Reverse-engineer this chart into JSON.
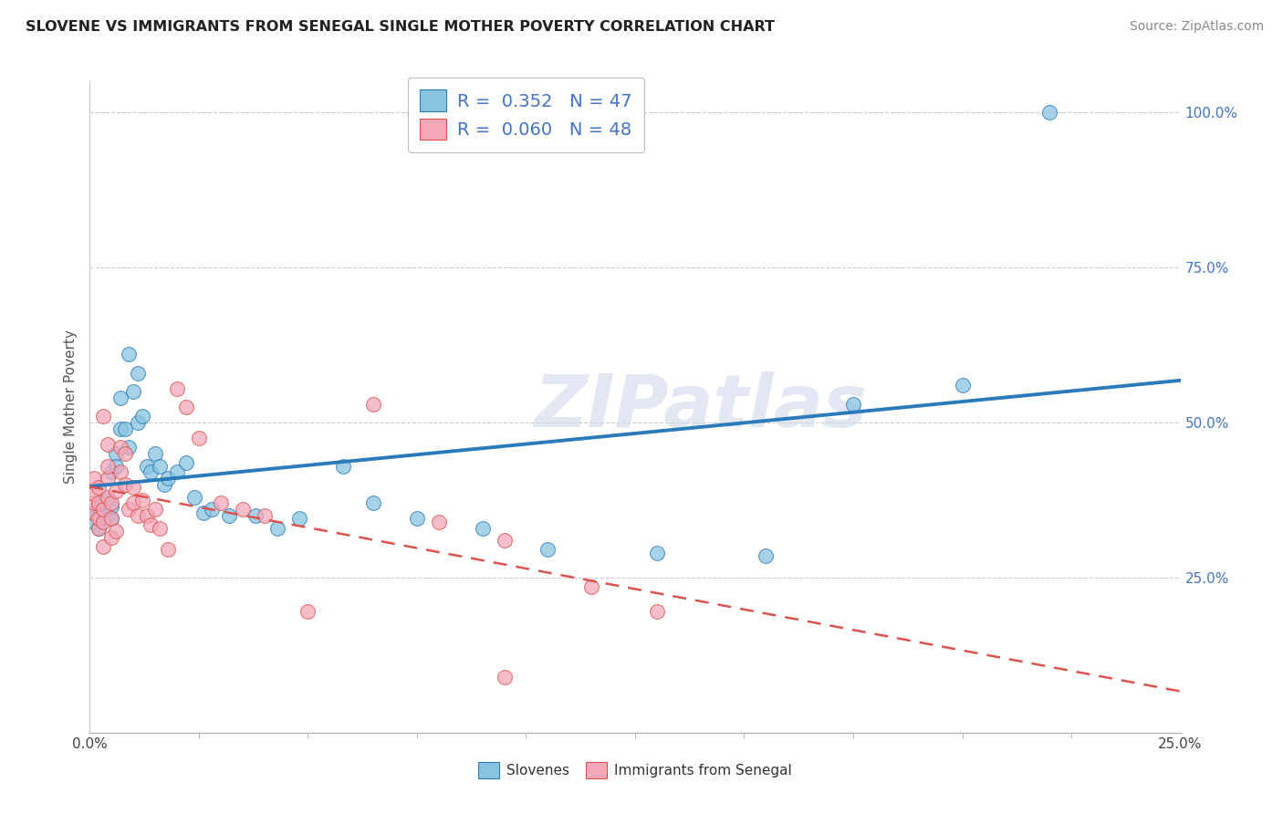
{
  "title": "SLOVENE VS IMMIGRANTS FROM SENEGAL SINGLE MOTHER POVERTY CORRELATION CHART",
  "source": "Source: ZipAtlas.com",
  "ylabel": "Single Mother Poverty",
  "legend_label1": "Slovenes",
  "legend_label2": "Immigrants from Senegal",
  "R1": 0.352,
  "N1": 47,
  "R2": 0.06,
  "N2": 48,
  "color_blue": "#89c4e1",
  "color_pink": "#f4a7b9",
  "color_blue_line": "#2b7bba",
  "color_pink_line": "#d9534f",
  "watermark": "ZIPatlas",
  "xlim": [
    0.0,
    0.25
  ],
  "ylim": [
    0.0,
    1.05
  ],
  "ytick_values": [
    0.25,
    0.5,
    0.75,
    1.0
  ],
  "ytick_labels": [
    "25.0%",
    "50.0%",
    "75.0%",
    "100.0%"
  ],
  "blue_x": [
    0.001,
    0.001,
    0.002,
    0.002,
    0.003,
    0.003,
    0.004,
    0.004,
    0.005,
    0.005,
    0.005,
    0.006,
    0.006,
    0.007,
    0.007,
    0.008,
    0.009,
    0.009,
    0.01,
    0.011,
    0.011,
    0.012,
    0.013,
    0.014,
    0.015,
    0.016,
    0.017,
    0.018,
    0.02,
    0.022,
    0.024,
    0.026,
    0.028,
    0.032,
    0.038,
    0.043,
    0.048,
    0.058,
    0.065,
    0.075,
    0.09,
    0.105,
    0.13,
    0.155,
    0.175,
    0.2,
    0.22
  ],
  "blue_y": [
    0.355,
    0.34,
    0.365,
    0.33,
    0.355,
    0.36,
    0.35,
    0.375,
    0.345,
    0.365,
    0.42,
    0.45,
    0.43,
    0.49,
    0.54,
    0.49,
    0.46,
    0.61,
    0.55,
    0.5,
    0.58,
    0.51,
    0.43,
    0.42,
    0.45,
    0.43,
    0.4,
    0.41,
    0.42,
    0.435,
    0.38,
    0.355,
    0.36,
    0.35,
    0.35,
    0.33,
    0.345,
    0.43,
    0.37,
    0.345,
    0.33,
    0.295,
    0.29,
    0.285,
    0.53,
    0.56,
    1.0
  ],
  "pink_x": [
    0.001,
    0.001,
    0.001,
    0.001,
    0.002,
    0.002,
    0.002,
    0.002,
    0.003,
    0.003,
    0.003,
    0.003,
    0.004,
    0.004,
    0.004,
    0.004,
    0.005,
    0.005,
    0.005,
    0.006,
    0.006,
    0.007,
    0.007,
    0.008,
    0.008,
    0.009,
    0.01,
    0.01,
    0.011,
    0.012,
    0.013,
    0.014,
    0.015,
    0.016,
    0.018,
    0.02,
    0.022,
    0.025,
    0.03,
    0.035,
    0.04,
    0.05,
    0.065,
    0.08,
    0.095,
    0.115,
    0.13,
    0.095
  ],
  "pink_y": [
    0.355,
    0.37,
    0.385,
    0.41,
    0.33,
    0.345,
    0.37,
    0.395,
    0.3,
    0.34,
    0.36,
    0.51,
    0.38,
    0.41,
    0.43,
    0.465,
    0.315,
    0.345,
    0.37,
    0.325,
    0.39,
    0.42,
    0.46,
    0.4,
    0.45,
    0.36,
    0.37,
    0.395,
    0.35,
    0.375,
    0.35,
    0.335,
    0.36,
    0.33,
    0.295,
    0.555,
    0.525,
    0.475,
    0.37,
    0.36,
    0.35,
    0.195,
    0.53,
    0.34,
    0.31,
    0.235,
    0.195,
    0.09
  ]
}
